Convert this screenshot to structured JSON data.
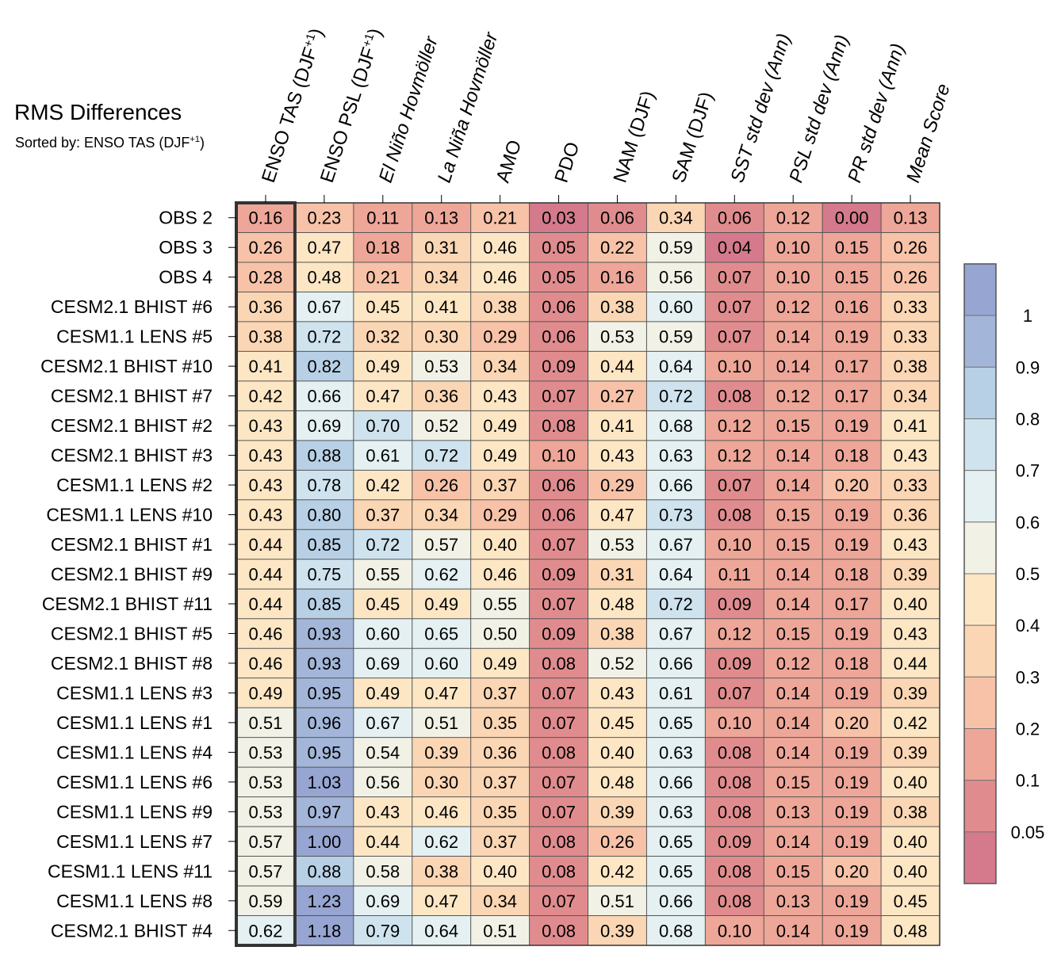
{
  "header": {
    "title": "RMS Differences",
    "subtitle_prefix": "Sorted by: ENSO TAS (DJF",
    "subtitle_sup": "+1",
    "subtitle_suffix": ")"
  },
  "chart_data": {
    "type": "heatmap",
    "title": "RMS Differences",
    "subtitle": "Sorted by: ENSO TAS (DJF+1)",
    "columns": [
      {
        "label": "ENSO TAS (DJF",
        "sup": "+1",
        "suffix": ")",
        "italic": false
      },
      {
        "label": "ENSO PSL (DJF",
        "sup": "+1",
        "suffix": ")",
        "italic": false
      },
      {
        "label": "El Niño Hovmöller",
        "sup": "",
        "suffix": "",
        "italic": true
      },
      {
        "label": "La Niña Hovmöller",
        "sup": "",
        "suffix": "",
        "italic": true
      },
      {
        "label": "AMO",
        "sup": "",
        "suffix": "",
        "italic": false
      },
      {
        "label": "PDO",
        "sup": "",
        "suffix": "",
        "italic": false
      },
      {
        "label": "NAM (DJF)",
        "sup": "",
        "suffix": "",
        "italic": false
      },
      {
        "label": "SAM (DJF)",
        "sup": "",
        "suffix": "",
        "italic": false
      },
      {
        "label": "SST std dev (Ann)",
        "sup": "",
        "suffix": "",
        "italic": true
      },
      {
        "label": "PSL std dev (Ann)",
        "sup": "",
        "suffix": "",
        "italic": true
      },
      {
        "label": "PR std dev (Ann)",
        "sup": "",
        "suffix": "",
        "italic": true
      },
      {
        "label": "Mean Score",
        "sup": "",
        "suffix": "",
        "italic": true
      }
    ],
    "rows": [
      {
        "name": "OBS 2",
        "values": [
          0.16,
          0.23,
          0.11,
          0.13,
          0.21,
          0.03,
          0.06,
          0.34,
          0.06,
          0.12,
          0.0,
          0.13
        ]
      },
      {
        "name": "OBS 3",
        "values": [
          0.26,
          0.47,
          0.18,
          0.31,
          0.46,
          0.05,
          0.22,
          0.59,
          0.04,
          0.1,
          0.15,
          0.26
        ]
      },
      {
        "name": "OBS 4",
        "values": [
          0.28,
          0.48,
          0.21,
          0.34,
          0.46,
          0.05,
          0.16,
          0.56,
          0.07,
          0.1,
          0.15,
          0.26
        ]
      },
      {
        "name": "CESM2.1 BHIST #6",
        "values": [
          0.36,
          0.67,
          0.45,
          0.41,
          0.38,
          0.06,
          0.38,
          0.6,
          0.07,
          0.12,
          0.16,
          0.33
        ]
      },
      {
        "name": "CESM1.1 LENS #5",
        "values": [
          0.38,
          0.72,
          0.32,
          0.3,
          0.29,
          0.06,
          0.53,
          0.59,
          0.07,
          0.14,
          0.19,
          0.33
        ]
      },
      {
        "name": "CESM2.1 BHIST #10",
        "values": [
          0.41,
          0.82,
          0.49,
          0.53,
          0.34,
          0.09,
          0.44,
          0.64,
          0.1,
          0.14,
          0.17,
          0.38
        ]
      },
      {
        "name": "CESM2.1 BHIST #7",
        "values": [
          0.42,
          0.66,
          0.47,
          0.36,
          0.43,
          0.07,
          0.27,
          0.72,
          0.08,
          0.12,
          0.17,
          0.34
        ]
      },
      {
        "name": "CESM2.1 BHIST #2",
        "values": [
          0.43,
          0.69,
          0.7,
          0.52,
          0.49,
          0.08,
          0.41,
          0.68,
          0.12,
          0.15,
          0.19,
          0.41
        ]
      },
      {
        "name": "CESM2.1 BHIST #3",
        "values": [
          0.43,
          0.88,
          0.61,
          0.72,
          0.49,
          0.1,
          0.43,
          0.63,
          0.12,
          0.14,
          0.18,
          0.43
        ]
      },
      {
        "name": "CESM1.1 LENS #2",
        "values": [
          0.43,
          0.78,
          0.42,
          0.26,
          0.37,
          0.06,
          0.29,
          0.66,
          0.07,
          0.14,
          0.2,
          0.33
        ]
      },
      {
        "name": "CESM1.1 LENS #10",
        "values": [
          0.43,
          0.8,
          0.37,
          0.34,
          0.29,
          0.06,
          0.47,
          0.73,
          0.08,
          0.15,
          0.19,
          0.36
        ]
      },
      {
        "name": "CESM2.1 BHIST #1",
        "values": [
          0.44,
          0.85,
          0.72,
          0.57,
          0.4,
          0.07,
          0.53,
          0.67,
          0.1,
          0.15,
          0.19,
          0.43
        ]
      },
      {
        "name": "CESM2.1 BHIST #9",
        "values": [
          0.44,
          0.75,
          0.55,
          0.62,
          0.46,
          0.09,
          0.31,
          0.64,
          0.11,
          0.14,
          0.18,
          0.39
        ]
      },
      {
        "name": "CESM2.1 BHIST #11",
        "values": [
          0.44,
          0.85,
          0.45,
          0.49,
          0.55,
          0.07,
          0.48,
          0.72,
          0.09,
          0.14,
          0.17,
          0.4
        ]
      },
      {
        "name": "CESM2.1 BHIST #5",
        "values": [
          0.46,
          0.93,
          0.6,
          0.65,
          0.5,
          0.09,
          0.38,
          0.67,
          0.12,
          0.15,
          0.19,
          0.43
        ]
      },
      {
        "name": "CESM2.1 BHIST #8",
        "values": [
          0.46,
          0.93,
          0.69,
          0.6,
          0.49,
          0.08,
          0.52,
          0.66,
          0.09,
          0.12,
          0.18,
          0.44
        ]
      },
      {
        "name": "CESM1.1 LENS #3",
        "values": [
          0.49,
          0.95,
          0.49,
          0.47,
          0.37,
          0.07,
          0.43,
          0.61,
          0.07,
          0.14,
          0.19,
          0.39
        ]
      },
      {
        "name": "CESM1.1 LENS #1",
        "values": [
          0.51,
          0.96,
          0.67,
          0.51,
          0.35,
          0.07,
          0.45,
          0.65,
          0.1,
          0.14,
          0.2,
          0.42
        ]
      },
      {
        "name": "CESM1.1 LENS #4",
        "values": [
          0.53,
          0.95,
          0.54,
          0.39,
          0.36,
          0.08,
          0.4,
          0.63,
          0.08,
          0.14,
          0.19,
          0.39
        ]
      },
      {
        "name": "CESM1.1 LENS #6",
        "values": [
          0.53,
          1.03,
          0.56,
          0.3,
          0.37,
          0.07,
          0.48,
          0.66,
          0.08,
          0.15,
          0.19,
          0.4
        ]
      },
      {
        "name": "CESM1.1 LENS #9",
        "values": [
          0.53,
          0.97,
          0.43,
          0.46,
          0.35,
          0.07,
          0.39,
          0.63,
          0.08,
          0.13,
          0.19,
          0.38
        ]
      },
      {
        "name": "CESM1.1 LENS #7",
        "values": [
          0.57,
          1.0,
          0.44,
          0.62,
          0.37,
          0.08,
          0.26,
          0.65,
          0.09,
          0.14,
          0.19,
          0.4
        ]
      },
      {
        "name": "CESM1.1 LENS #11",
        "values": [
          0.57,
          0.88,
          0.58,
          0.38,
          0.4,
          0.08,
          0.42,
          0.65,
          0.08,
          0.15,
          0.2,
          0.4
        ]
      },
      {
        "name": "CESM1.1 LENS #8",
        "values": [
          0.59,
          1.23,
          0.69,
          0.47,
          0.34,
          0.07,
          0.51,
          0.66,
          0.08,
          0.13,
          0.19,
          0.45
        ]
      },
      {
        "name": "CESM2.1 BHIST #4",
        "values": [
          0.62,
          1.18,
          0.79,
          0.64,
          0.51,
          0.08,
          0.39,
          0.68,
          0.1,
          0.14,
          0.19,
          0.48
        ]
      }
    ],
    "sorted_column_index": 0,
    "colorbar": {
      "levels": [
        0.05,
        0.1,
        0.2,
        0.3,
        0.4,
        0.5,
        0.6,
        0.7,
        0.8,
        0.9,
        1
      ],
      "labels": [
        "0.05",
        "0.1",
        "0.2",
        "0.3",
        "0.4",
        "0.5",
        "0.6",
        "0.7",
        "0.8",
        "0.9",
        "1"
      ],
      "colors": [
        "#d47a8c",
        "#e08c8e",
        "#eda698",
        "#f7c2a8",
        "#fbd6b4",
        "#fde6c4",
        "#f1f1e6",
        "#e4f0f2",
        "#cfe3ee",
        "#b8d0e5",
        "#a3b6d9",
        "#97a5d2"
      ]
    }
  }
}
